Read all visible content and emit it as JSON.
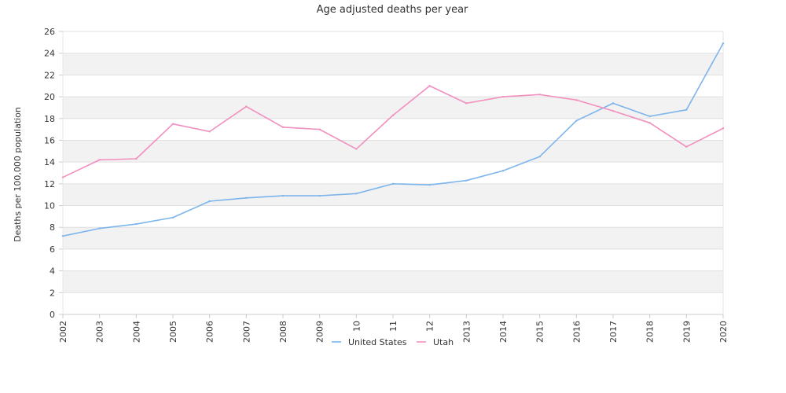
{
  "chart_data": {
    "type": "line",
    "title": "Age adjusted deaths per year",
    "xlabel": "",
    "ylabel": "Deaths per 100,000 population",
    "x_ticks": [
      "2002",
      "2003",
      "2004",
      "2005",
      "2006",
      "2007",
      "2008",
      "2009",
      "10",
      "11",
      "12",
      "2013",
      "2014",
      "2015",
      "2016",
      "2017",
      "2018",
      "2019",
      "2020"
    ],
    "x": [
      2002,
      2003,
      2004,
      2005,
      2006,
      2007,
      2008,
      2009,
      2010,
      2011,
      2012,
      2013,
      2014,
      2015,
      2016,
      2017,
      2018,
      2019,
      2020
    ],
    "ylim": [
      0,
      26
    ],
    "yticks": [
      0,
      2,
      4,
      6,
      8,
      10,
      12,
      14,
      16,
      18,
      20,
      22,
      24,
      26
    ],
    "grid": "horizontal bands",
    "legend_placement": "bottom",
    "series": [
      {
        "name": "United States",
        "color": "#7cb5ec",
        "values": [
          7.2,
          7.9,
          8.3,
          8.9,
          10.4,
          10.7,
          10.9,
          10.9,
          11.1,
          12.0,
          11.9,
          12.3,
          13.2,
          14.5,
          17.8,
          19.4,
          18.2,
          18.8,
          24.9
        ]
      },
      {
        "name": "Utah",
        "color": "#f28fbf",
        "values": [
          12.6,
          14.2,
          14.3,
          17.5,
          16.8,
          19.1,
          17.2,
          17.0,
          15.2,
          18.3,
          21.0,
          19.4,
          20.0,
          20.2,
          19.7,
          18.7,
          17.6,
          15.4,
          17.1
        ]
      }
    ]
  }
}
